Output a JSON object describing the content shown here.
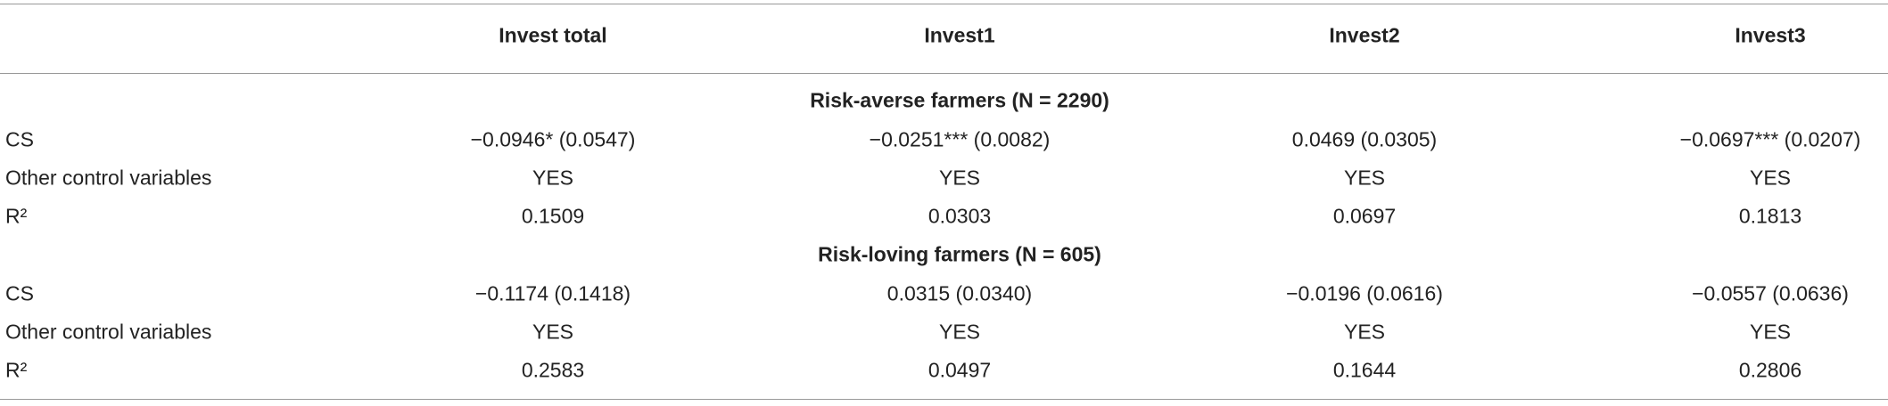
{
  "table": {
    "header": [
      "",
      "Invest total",
      "Invest1",
      "Invest2",
      "Invest3"
    ],
    "sections": [
      {
        "title": "Risk-averse farmers (N = 2290)",
        "rows": [
          [
            "CS",
            "−0.0946* (0.0547)",
            "−0.0251*** (0.0082)",
            "0.0469 (0.0305)",
            "−0.0697*** (0.0207)"
          ],
          [
            "Other control variables",
            "YES",
            "YES",
            "YES",
            "YES"
          ],
          [
            "R²",
            "0.1509",
            "0.0303",
            "0.0697",
            "0.1813"
          ]
        ]
      },
      {
        "title": "Risk-loving farmers (N = 605)",
        "rows": [
          [
            "CS",
            "−0.1174 (0.1418)",
            "0.0315 (0.0340)",
            "−0.0196 (0.0616)",
            "−0.0557 (0.0636)"
          ],
          [
            "Other control variables",
            "YES",
            "YES",
            "YES",
            "YES"
          ],
          [
            "R²",
            "0.2583",
            "0.0497",
            "0.1644",
            "0.2806"
          ]
        ]
      }
    ]
  }
}
